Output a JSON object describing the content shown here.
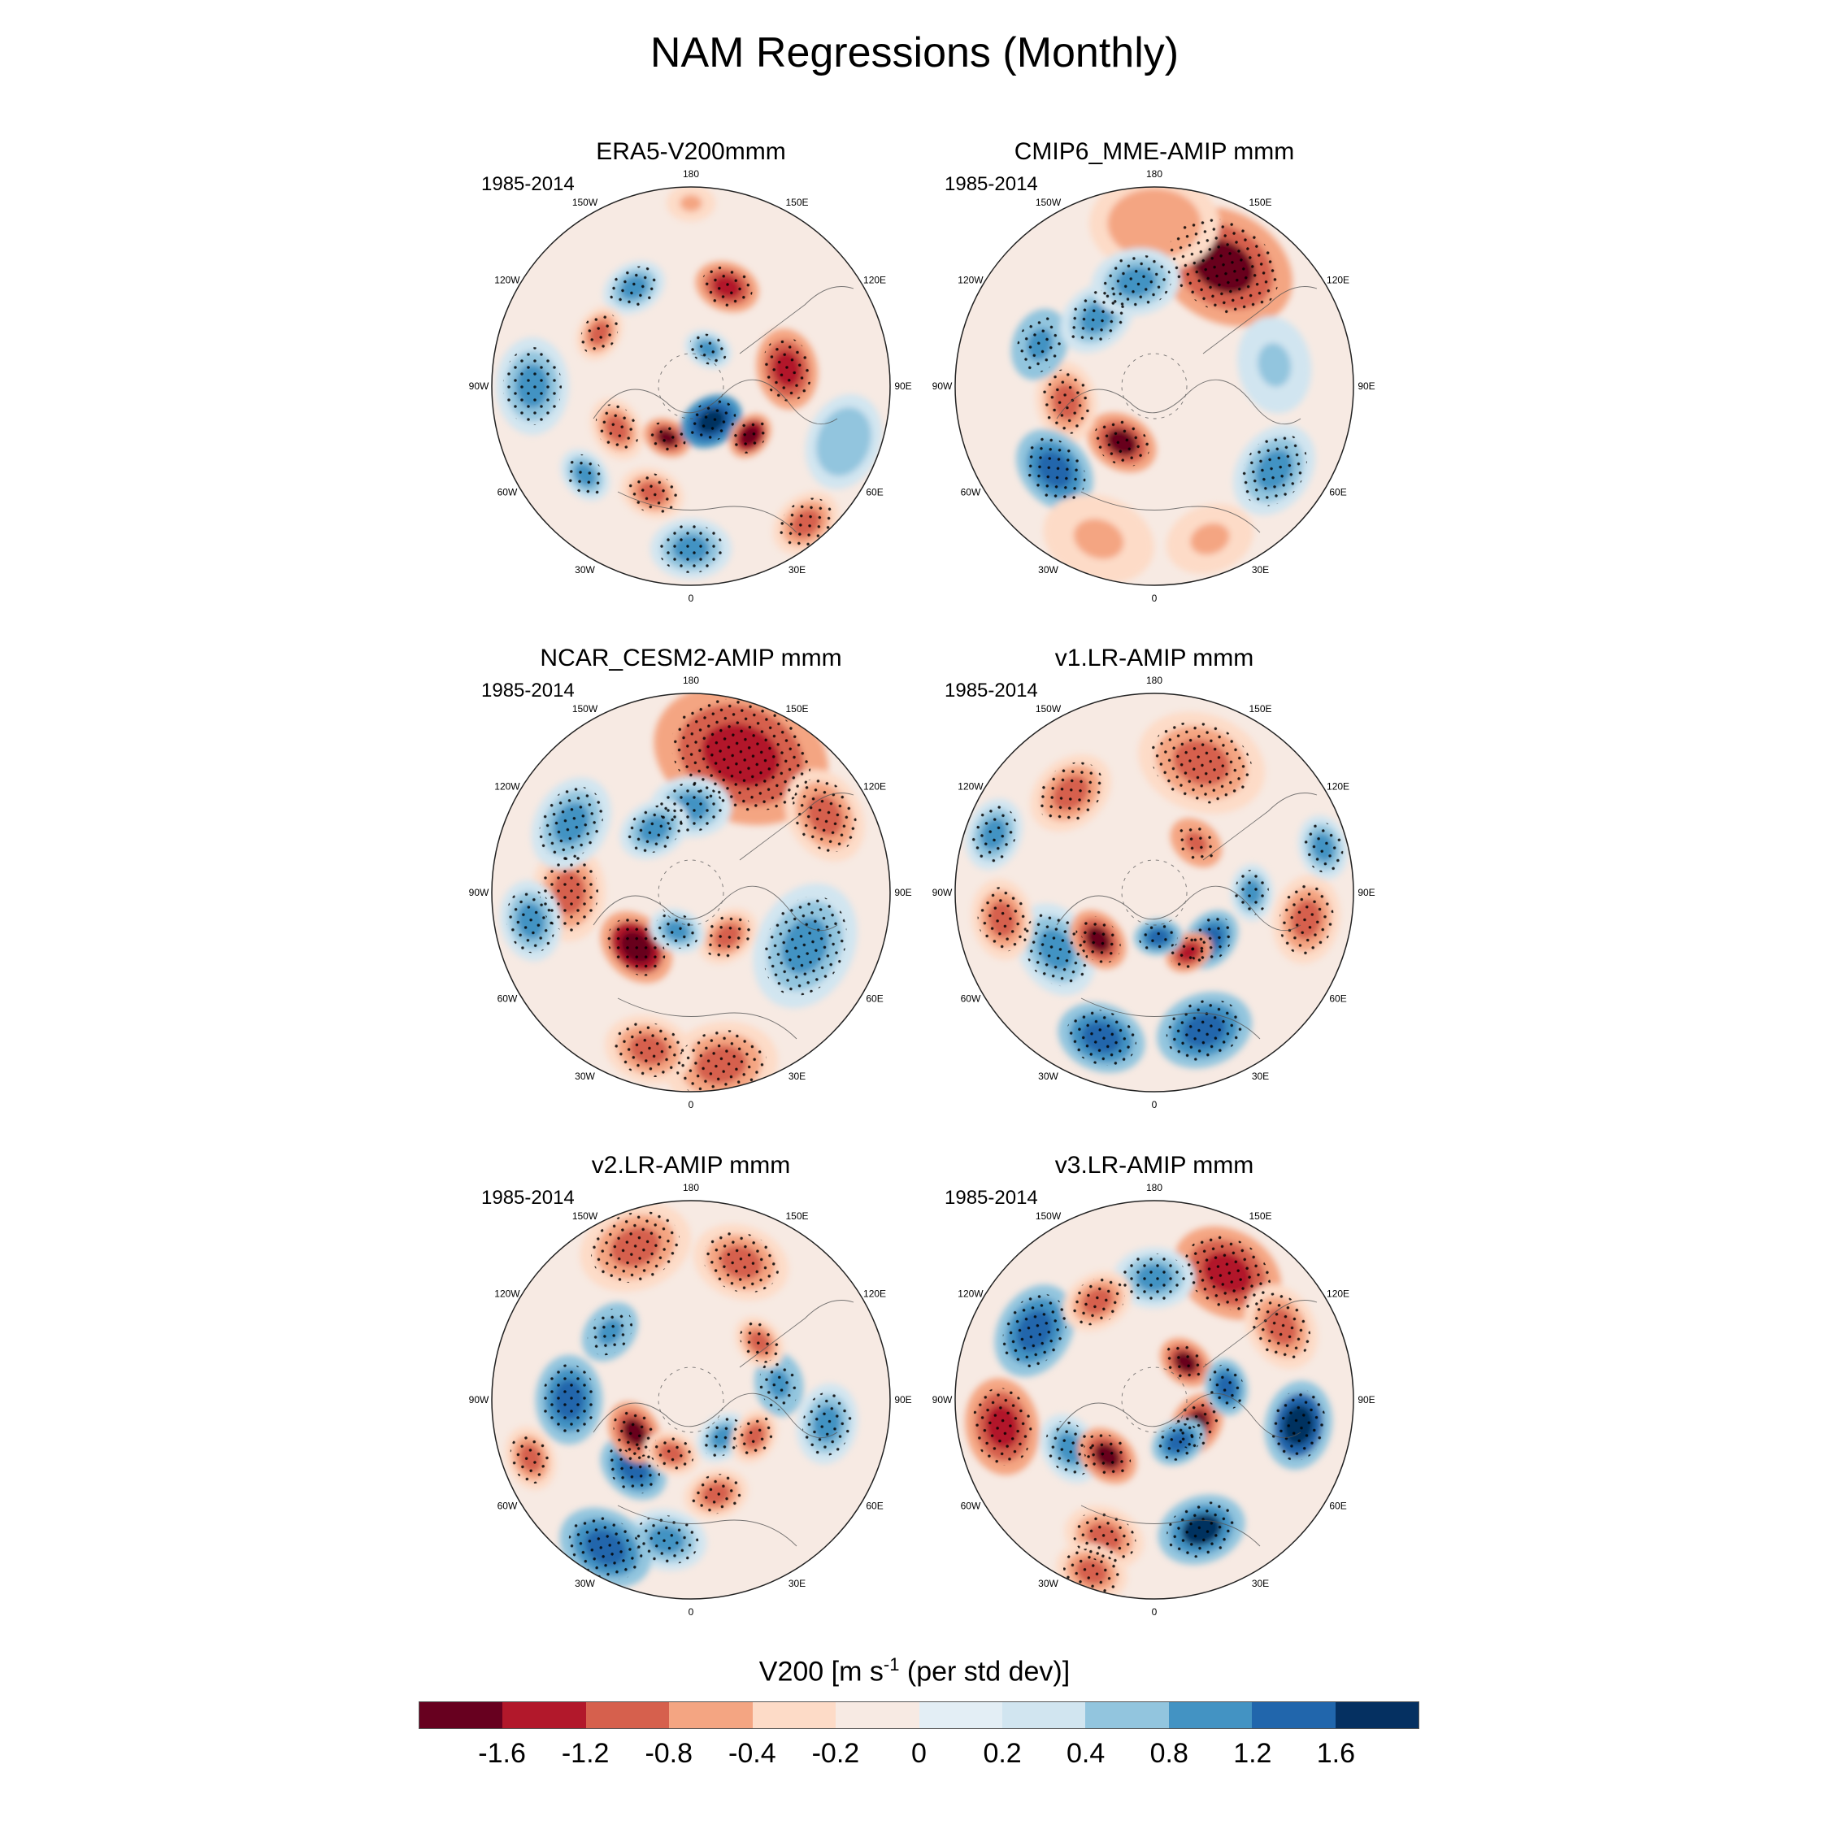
{
  "title": "NAM Regressions (Monthly)",
  "panels": [
    {
      "title": "ERA5-V200mmm",
      "period": "1985-2014"
    },
    {
      "title": "CMIP6_MME-AMIP  mmm",
      "period": "1985-2014"
    },
    {
      "title": "NCAR_CESM2-AMIP  mmm",
      "period": "1985-2014"
    },
    {
      "title": "v1.LR-AMIP  mmm",
      "period": "1985-2014"
    },
    {
      "title": "v2.LR-AMIP  mmm",
      "period": "1985-2014"
    },
    {
      "title": "v3.LR-AMIP  mmm",
      "period": "1985-2014"
    }
  ],
  "longitude_labels": [
    "180",
    "150E",
    "120E",
    "90E",
    "60E",
    "30E",
    "0",
    "30W",
    "60W",
    "90W",
    "120W",
    "150W"
  ],
  "colorbar": {
    "title_pre": "V200 [m s",
    "title_sup": "-1",
    "title_post": " (per std dev)]",
    "colors": [
      "#67001f",
      "#b2182b",
      "#d6604d",
      "#f4a582",
      "#fddbc7",
      "#f7eae3",
      "#e3eef5",
      "#d1e5f0",
      "#92c5de",
      "#4393c3",
      "#2166ac",
      "#053061"
    ],
    "labels": [
      "-1.6",
      "-1.2",
      "-0.8",
      "-0.4",
      "-0.2",
      "0",
      "0.2",
      "0.4",
      "0.8",
      "1.2",
      "1.6"
    ]
  }
}
